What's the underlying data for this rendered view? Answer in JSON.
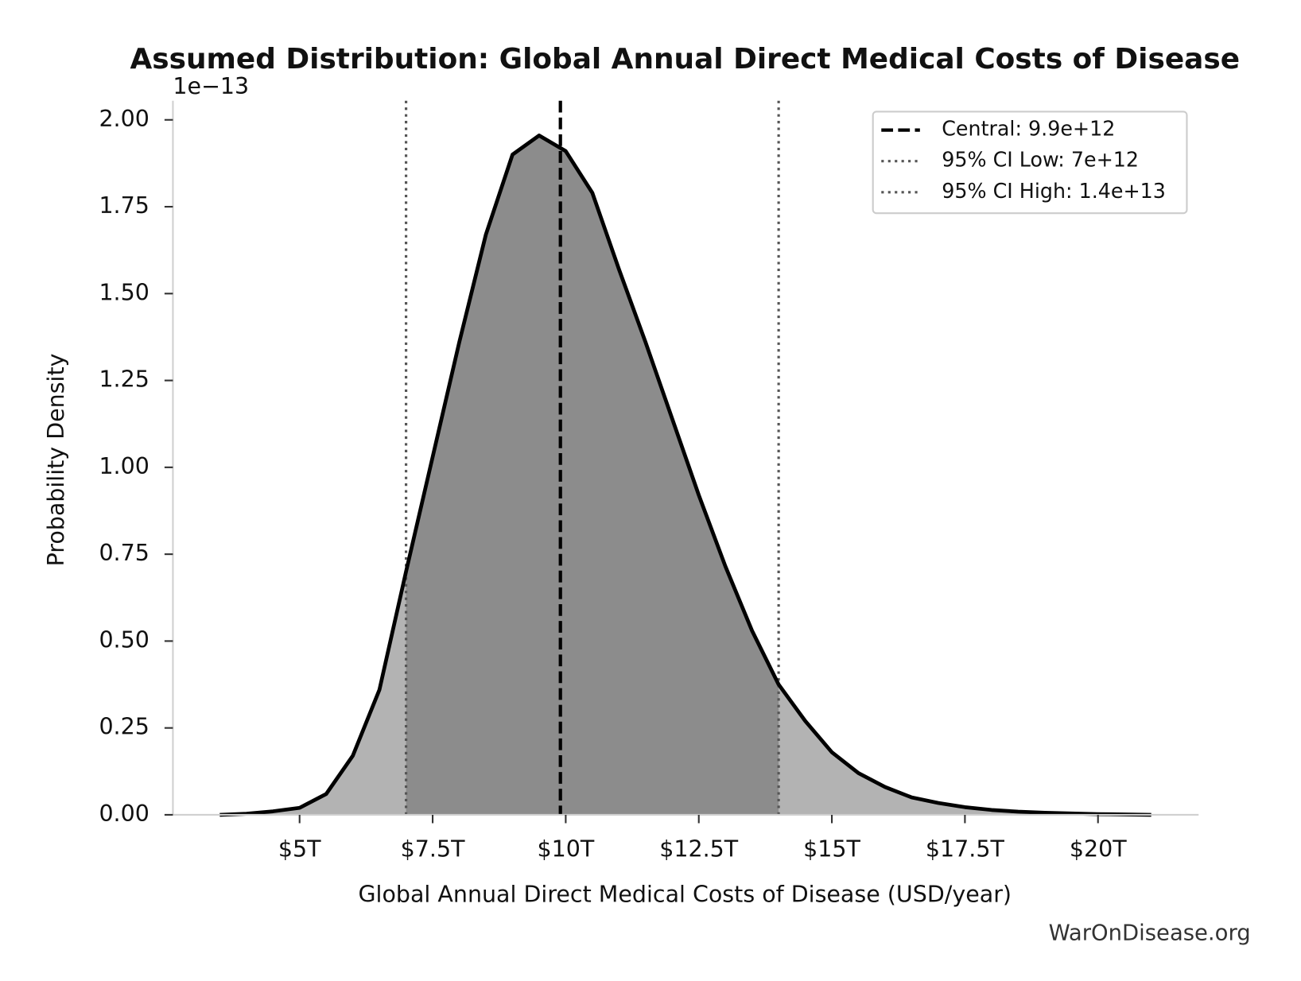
{
  "chart_data": {
    "type": "density",
    "title": "Assumed Distribution: Global Annual Direct Medical Costs of Disease",
    "x_label": "Global Annual Direct Medical Costs of Disease (USD/year)",
    "y_label": "Probability Density",
    "y_offset_label": "1e−13",
    "watermark": "WarOnDisease.org",
    "x": [
      3500000000000.0,
      4000000000000.0,
      4500000000000.0,
      5000000000000.0,
      5500000000000.0,
      6000000000000.0,
      6500000000000.0,
      7000000000000.0,
      7500000000000.0,
      8000000000000.0,
      8500000000000.0,
      9000000000000.0,
      9500000000000.0,
      10000000000000.0,
      10500000000000.0,
      11000000000000.0,
      11500000000000.0,
      12000000000000.0,
      12500000000000.0,
      13000000000000.0,
      13500000000000.0,
      14000000000000.0,
      14500000000000.0,
      15000000000000.0,
      15500000000000.0,
      16000000000000.0,
      16500000000000.0,
      17000000000000.0,
      17500000000000.0,
      18000000000000.0,
      18500000000000.0,
      19000000000000.0,
      19500000000000.0,
      20000000000000.0,
      20500000000000.0,
      21000000000000.0
    ],
    "values": [
      0,
      0.003,
      0.01,
      0.02,
      0.06,
      0.17,
      0.36,
      0.7,
      1.03,
      1.36,
      1.67,
      1.9,
      1.955,
      1.91,
      1.79,
      1.57,
      1.36,
      1.14,
      0.92,
      0.715,
      0.53,
      0.375,
      0.27,
      0.18,
      0.12,
      0.08,
      0.05,
      0.034,
      0.022,
      0.014,
      0.009,
      0.006,
      0.004,
      0.002,
      0.001,
      0
    ],
    "color": "#000000",
    "fill_color": "#b3b3b3",
    "ci_fill_color": "#8c8c8c",
    "vlines": [
      {
        "name": "Central: 9.9e+12",
        "value": 9900000000000.0,
        "style": "dashed",
        "color": "#000000"
      },
      {
        "name": "95% CI Low: 7e+12",
        "value": 7000000000000.0,
        "style": "dotted",
        "color": "#555555"
      },
      {
        "name": "95% CI High: 1.4e+13",
        "value": 14000000000000.0,
        "style": "dotted",
        "color": "#555555"
      }
    ],
    "xlim": [
      2620000000000.0,
      21890000000000.0
    ],
    "ylim": [
      0,
      2.055
    ],
    "xticks": [
      {
        "value": 5000000000000.0,
        "label": "$5T"
      },
      {
        "value": 7500000000000.0,
        "label": "$7.5T"
      },
      {
        "value": 10000000000000.0,
        "label": "$10T"
      },
      {
        "value": 12500000000000.0,
        "label": "$12.5T"
      },
      {
        "value": 15000000000000.0,
        "label": "$15T"
      },
      {
        "value": 17500000000000.0,
        "label": "$17.5T"
      },
      {
        "value": 20000000000000.0,
        "label": "$20T"
      }
    ],
    "yticks": [
      {
        "value": 0,
        "label": "0.00"
      },
      0.25,
      {
        "value": 0.5,
        "label": "0.50"
      },
      0.75,
      {
        "value": 1,
        "label": "1.00"
      },
      1.25,
      {
        "value": 1.5,
        "label": "1.50"
      },
      1.75,
      {
        "value": 2,
        "label": "2.00"
      }
    ],
    "legend": "upper right",
    "grid": false
  }
}
